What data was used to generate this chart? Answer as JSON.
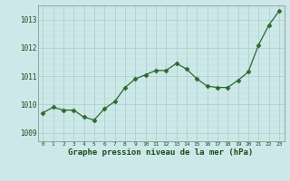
{
  "x": [
    0,
    1,
    2,
    3,
    4,
    5,
    6,
    7,
    8,
    9,
    10,
    11,
    12,
    13,
    14,
    15,
    16,
    17,
    18,
    19,
    20,
    21,
    22,
    23
  ],
  "y": [
    1009.7,
    1009.9,
    1009.8,
    1009.8,
    1009.55,
    1009.45,
    1009.85,
    1010.1,
    1010.6,
    1010.9,
    1011.05,
    1011.2,
    1011.2,
    1011.45,
    1011.25,
    1010.9,
    1010.65,
    1010.6,
    1010.6,
    1010.85,
    1011.15,
    1012.1,
    1012.8,
    1013.3
  ],
  "line_color": "#2d6a2d",
  "marker": "D",
  "marker_size": 2.5,
  "bg_color": "#cce8e8",
  "grid_major_color": "#aacccc",
  "grid_minor_color": "#bbdddd",
  "xlabel": "Graphe pression niveau de la mer (hPa)",
  "xlabel_color": "#1a4a1a",
  "tick_color": "#1a4a1a",
  "ylim": [
    1008.7,
    1013.5
  ],
  "yticks": [
    1009,
    1010,
    1011,
    1012,
    1013
  ],
  "xlim": [
    -0.5,
    23.5
  ],
  "xticks": [
    0,
    1,
    2,
    3,
    4,
    5,
    6,
    7,
    8,
    9,
    10,
    11,
    12,
    13,
    14,
    15,
    16,
    17,
    18,
    19,
    20,
    21,
    22,
    23
  ]
}
